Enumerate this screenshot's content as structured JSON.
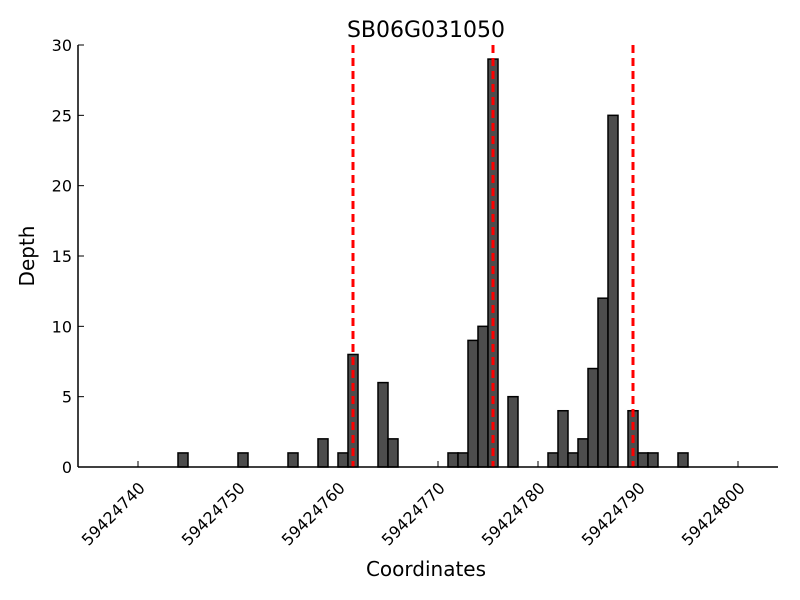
{
  "chart_data": {
    "type": "bar",
    "title": "SB06G031050",
    "xlabel": "Coordinates",
    "ylabel": "Depth",
    "xlim": [
      59424734,
      59424804
    ],
    "ylim": [
      0,
      30
    ],
    "xticks": [
      59424740,
      59424750,
      59424760,
      59424770,
      59424780,
      59424790,
      59424800
    ],
    "yticks": [
      0,
      5,
      10,
      15,
      20,
      25,
      30
    ],
    "grid": false,
    "bar_color": "#4d4d4d",
    "bars": [
      {
        "x": 59424744,
        "y": 1
      },
      {
        "x": 59424750,
        "y": 1
      },
      {
        "x": 59424755,
        "y": 1
      },
      {
        "x": 59424758,
        "y": 2
      },
      {
        "x": 59424760,
        "y": 1
      },
      {
        "x": 59424761,
        "y": 8
      },
      {
        "x": 59424764,
        "y": 6
      },
      {
        "x": 59424765,
        "y": 2
      },
      {
        "x": 59424771,
        "y": 1
      },
      {
        "x": 59424772,
        "y": 1
      },
      {
        "x": 59424773,
        "y": 9
      },
      {
        "x": 59424774,
        "y": 10
      },
      {
        "x": 59424775,
        "y": 29
      },
      {
        "x": 59424777,
        "y": 5
      },
      {
        "x": 59424781,
        "y": 1
      },
      {
        "x": 59424782,
        "y": 4
      },
      {
        "x": 59424783,
        "y": 1
      },
      {
        "x": 59424784,
        "y": 2
      },
      {
        "x": 59424785,
        "y": 7
      },
      {
        "x": 59424786,
        "y": 12
      },
      {
        "x": 59424787,
        "y": 25
      },
      {
        "x": 59424789,
        "y": 4
      },
      {
        "x": 59424790,
        "y": 1
      },
      {
        "x": 59424791,
        "y": 1
      },
      {
        "x": 59424794,
        "y": 1
      }
    ],
    "vlines": {
      "color": "#ff0000",
      "style": "dashed",
      "x": [
        59424761.5,
        59424775.5,
        59424789.5
      ]
    }
  }
}
